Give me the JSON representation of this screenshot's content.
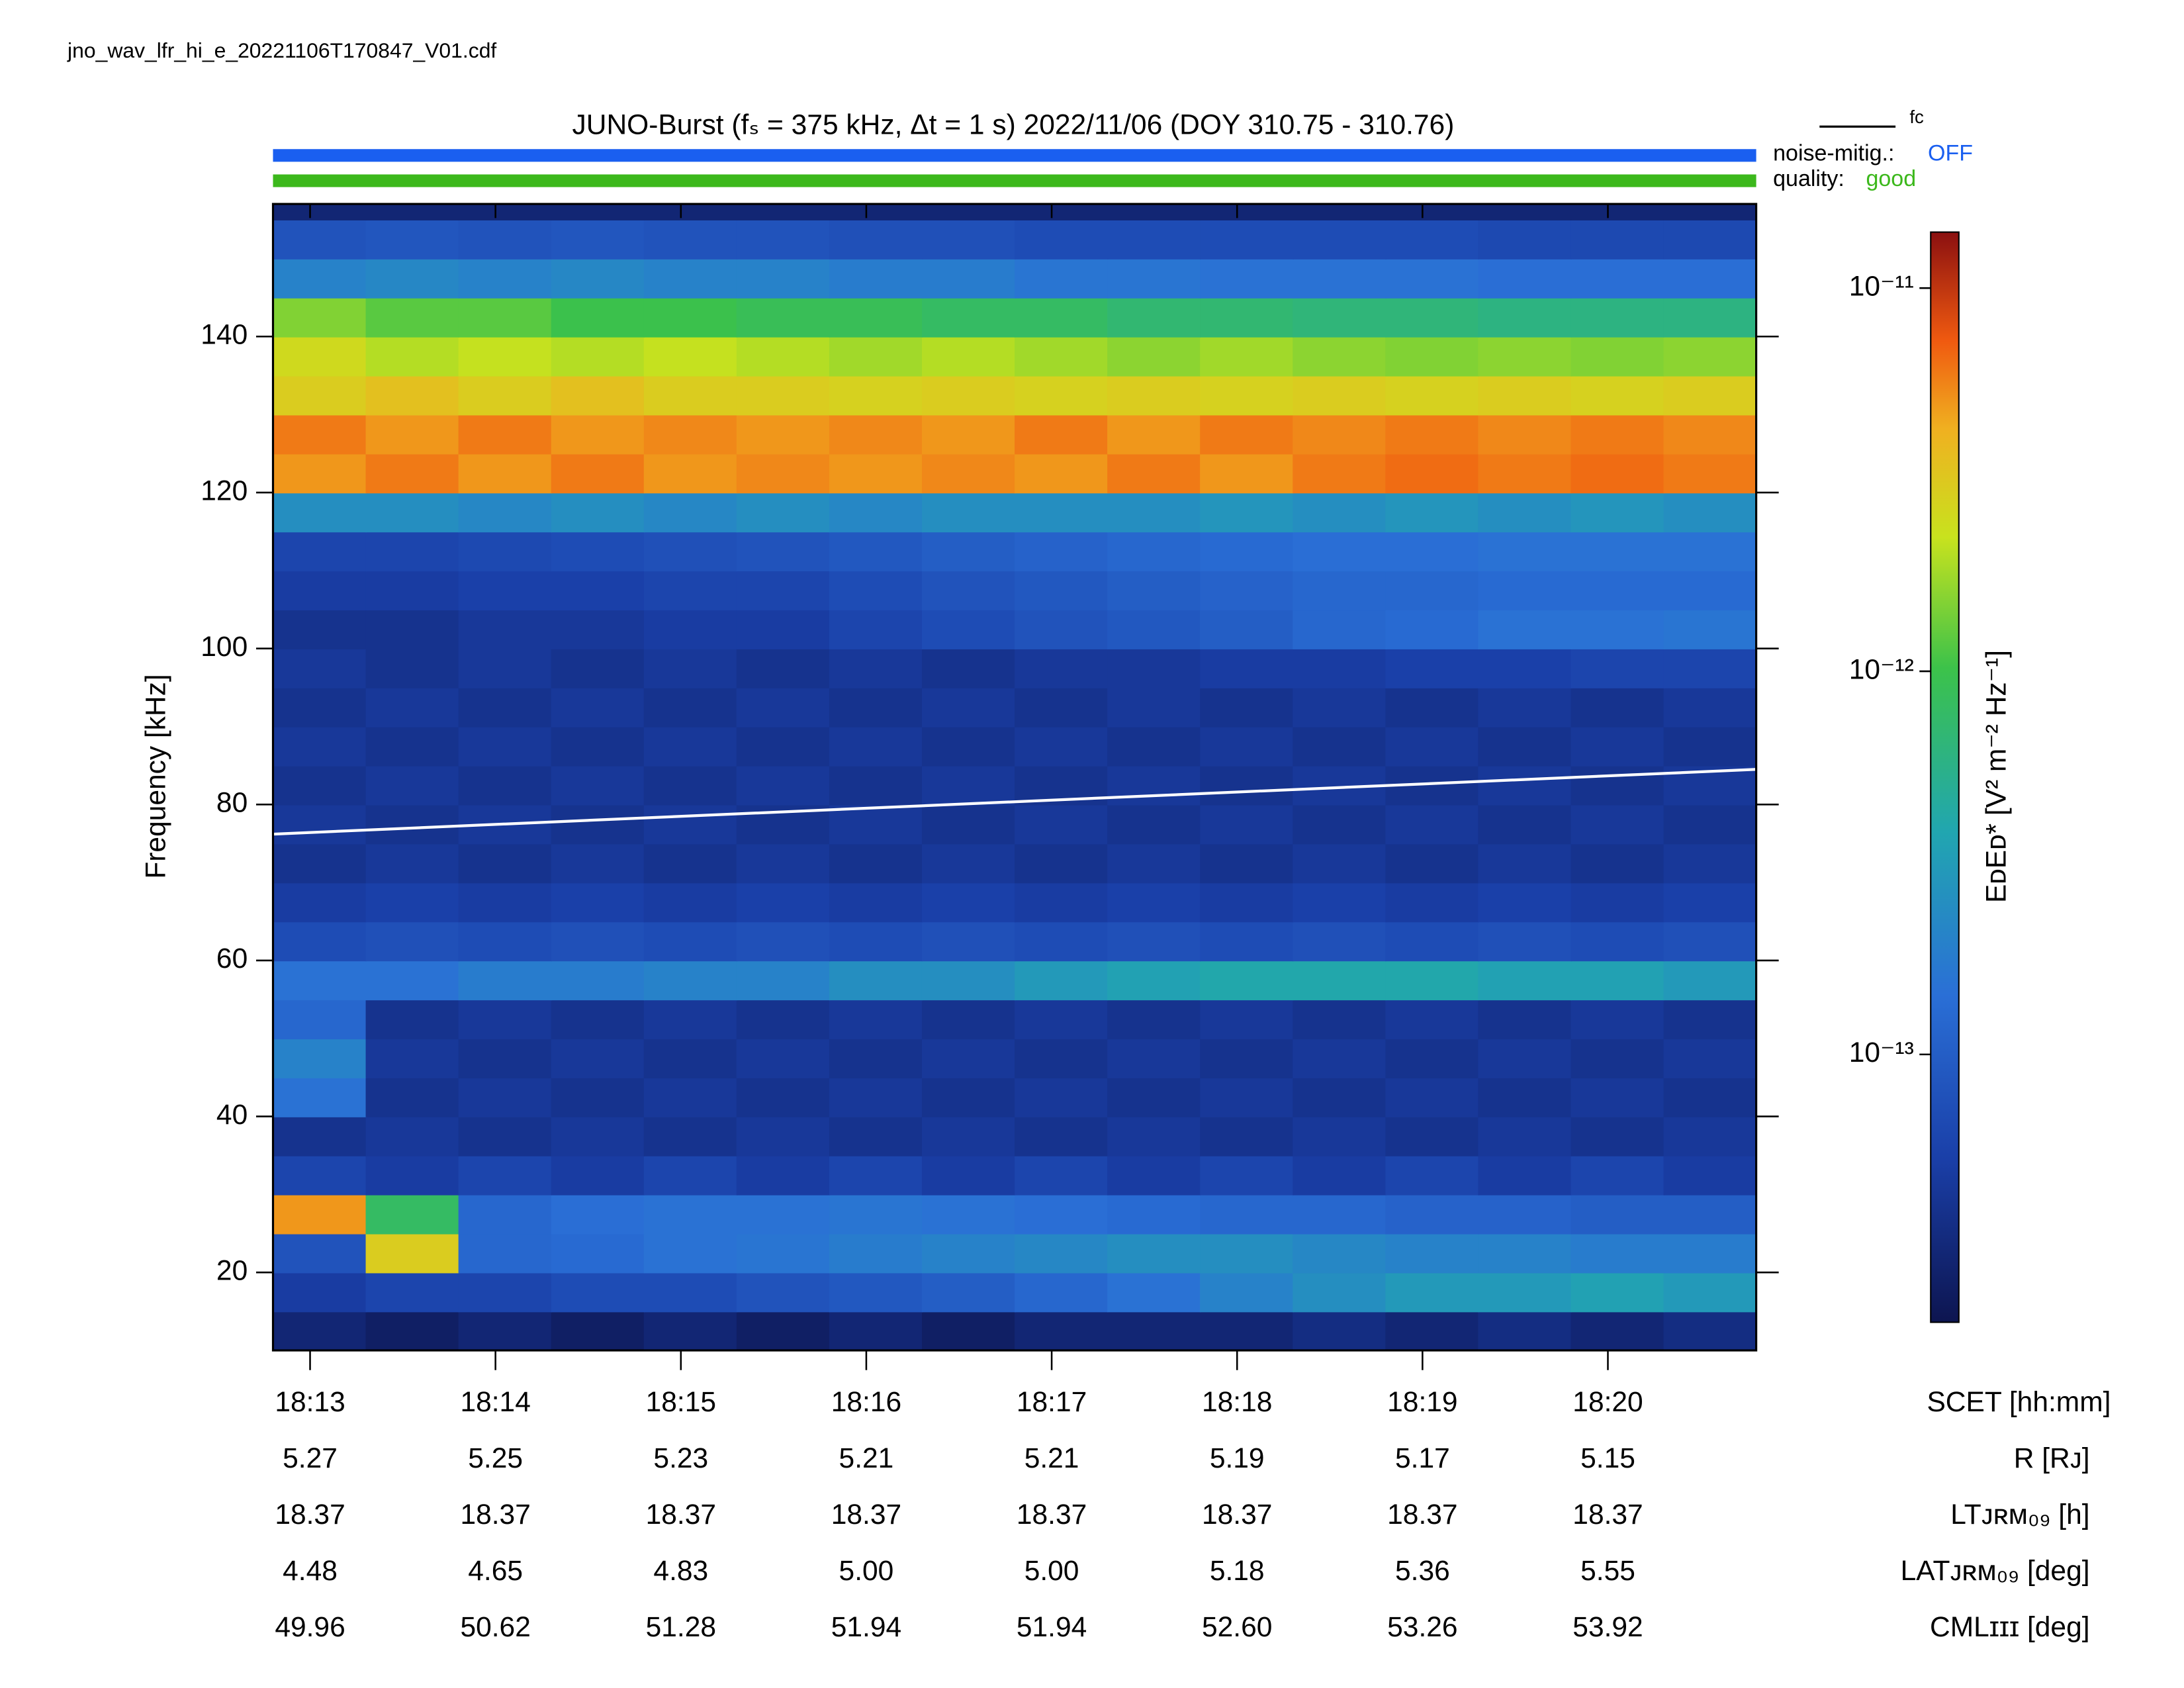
{
  "filename": "jno_wav_lfr_hi_e_20221106T170847_V01.cdf",
  "chart_data": {
    "type": "heatmap",
    "title": "JUNO-Burst (fₛ = 375 kHz, Δt = 1 s)  2022/11/06 (DOY 310.75 - 310.76)",
    "status": [
      {
        "label": "noise-mitig.:",
        "value": "OFF",
        "color": "#1a5ff0"
      },
      {
        "label": "quality:",
        "value": "good",
        "color": "#3cb81c"
      }
    ],
    "y_label": "Frequency [kHz]",
    "z_label": "EᴅEᴅ* [V² m⁻² Hz⁻¹]",
    "xlim": [
      1092.8,
      1100.8
    ],
    "xticks": [
      {
        "value": 1093,
        "label": "18:13"
      },
      {
        "value": 1094,
        "label": "18:14"
      },
      {
        "value": 1095,
        "label": "18:15"
      },
      {
        "value": 1096,
        "label": "18:16"
      },
      {
        "value": 1097,
        "label": "18:17"
      },
      {
        "value": 1098,
        "label": "18:18"
      },
      {
        "value": 1099,
        "label": "18:19"
      },
      {
        "value": 1100,
        "label": "18:20"
      }
    ],
    "ylim": [
      10,
      157
    ],
    "yticks": [
      20,
      40,
      60,
      80,
      100,
      120,
      140
    ],
    "zlim": [
      2e-14,
      1.4e-11
    ],
    "zscale": "log",
    "zticks": [
      {
        "value": 1e-11,
        "label": "10⁻¹¹"
      },
      {
        "value": 1e-12,
        "label": "10⁻¹²"
      },
      {
        "value": 1e-13,
        "label": "10⁻¹³"
      }
    ],
    "x_bins": [
      1092.8,
      1093.3,
      1093.8,
      1094.3,
      1094.8,
      1095.3,
      1095.8,
      1096.3,
      1096.8,
      1097.3,
      1097.8,
      1098.3,
      1098.8,
      1099.3,
      1099.8,
      1100.3,
      1100.8
    ],
    "y_bins": [
      10,
      15,
      20,
      25,
      30,
      35,
      40,
      45,
      50,
      55,
      60,
      65,
      70,
      75,
      80,
      85,
      90,
      95,
      100,
      105,
      110,
      115,
      120,
      125,
      130,
      135,
      140,
      145,
      150,
      155,
      157
    ],
    "z": [
      [
        3e-14,
        2.5e-14,
        3e-14,
        2.5e-14,
        3e-14,
        2.5e-14,
        3e-14,
        2.5e-14,
        3e-14,
        3e-14,
        3e-14,
        3.5e-14,
        3e-14,
        3.5e-14,
        3e-14,
        3.5e-14
      ],
      [
        5e-14,
        6e-14,
        6e-14,
        7e-14,
        7e-14,
        8e-14,
        9e-14,
        1e-13,
        1.2e-13,
        1.5e-13,
        2e-13,
        2.5e-13,
        3e-13,
        3e-13,
        3.5e-13,
        3e-13
      ],
      [
        8e-14,
        3e-12,
        1.2e-13,
        1.3e-13,
        1.5e-13,
        1.6e-13,
        1.8e-13,
        2e-13,
        2.2e-13,
        2.5e-13,
        2.5e-13,
        2.2e-13,
        2e-13,
        2e-13,
        1.8e-13,
        1.8e-13
      ],
      [
        5e-12,
        8e-13,
        1.2e-13,
        1.4e-13,
        1.5e-13,
        1.5e-13,
        1.6e-13,
        1.5e-13,
        1.4e-13,
        1.3e-13,
        1.2e-13,
        1.2e-13,
        1.1e-13,
        1.1e-13,
        1e-13,
        1e-13
      ],
      [
        6e-14,
        5e-14,
        6e-14,
        5e-14,
        6e-14,
        5e-14,
        6e-14,
        5e-14,
        6e-14,
        5e-14,
        6e-14,
        5e-14,
        6e-14,
        5e-14,
        6e-14,
        5e-14
      ],
      [
        4e-14,
        4.5e-14,
        4e-14,
        4.5e-14,
        4e-14,
        4.5e-14,
        4e-14,
        4.5e-14,
        4e-14,
        4.5e-14,
        4e-14,
        4.5e-14,
        4e-14,
        4.5e-14,
        4e-14,
        4.5e-14
      ],
      [
        1.5e-13,
        4e-14,
        4.5e-14,
        4e-14,
        4.5e-14,
        4e-14,
        4.5e-14,
        4e-14,
        4.5e-14,
        4e-14,
        4.5e-14,
        4e-14,
        4.5e-14,
        4e-14,
        4.5e-14,
        4e-14
      ],
      [
        2e-13,
        4.5e-14,
        4e-14,
        4.5e-14,
        4e-14,
        4.5e-14,
        4e-14,
        4.5e-14,
        4e-14,
        4.5e-14,
        4e-14,
        4.5e-14,
        4e-14,
        4.5e-14,
        4e-14,
        4.5e-14
      ],
      [
        1.2e-13,
        4e-14,
        4.5e-14,
        4e-14,
        4.5e-14,
        4e-14,
        4.5e-14,
        4e-14,
        4.5e-14,
        4e-14,
        4.5e-14,
        4e-14,
        4.5e-14,
        4e-14,
        4.5e-14,
        4e-14
      ],
      [
        1.5e-13,
        1.5e-13,
        1.8e-13,
        1.8e-13,
        2e-13,
        2e-13,
        2.5e-13,
        2.5e-13,
        3e-13,
        3.5e-13,
        4e-13,
        4e-13,
        4e-13,
        3.5e-13,
        3.5e-13,
        3e-13
      ],
      [
        7e-14,
        7.5e-14,
        7e-14,
        7.5e-14,
        7e-14,
        7.5e-14,
        7e-14,
        7.5e-14,
        7e-14,
        7.5e-14,
        7e-14,
        7.5e-14,
        7e-14,
        7.5e-14,
        7e-14,
        7.5e-14
      ],
      [
        5e-14,
        5.5e-14,
        5e-14,
        5.5e-14,
        5e-14,
        5.5e-14,
        5e-14,
        5.5e-14,
        5e-14,
        5.5e-14,
        5e-14,
        5.5e-14,
        5e-14,
        5.5e-14,
        5e-14,
        5.5e-14
      ],
      [
        4e-14,
        4.5e-14,
        4e-14,
        4.5e-14,
        4e-14,
        4.5e-14,
        4e-14,
        4.5e-14,
        4e-14,
        4.5e-14,
        4e-14,
        4.5e-14,
        4e-14,
        4.5e-14,
        4e-14,
        4.5e-14
      ],
      [
        4.5e-14,
        4e-14,
        4.5e-14,
        4e-14,
        4.5e-14,
        4e-14,
        4.5e-14,
        4e-14,
        4.5e-14,
        4e-14,
        4.5e-14,
        4e-14,
        4.5e-14,
        4e-14,
        4.5e-14,
        4e-14
      ],
      [
        4e-14,
        4.5e-14,
        4e-14,
        4.5e-14,
        4e-14,
        4.5e-14,
        4e-14,
        4.5e-14,
        4e-14,
        4.5e-14,
        4e-14,
        4.5e-14,
        4e-14,
        4.5e-14,
        4e-14,
        4.5e-14
      ],
      [
        4.5e-14,
        4e-14,
        4.5e-14,
        4e-14,
        4.5e-14,
        4e-14,
        4.5e-14,
        4e-14,
        4.5e-14,
        4e-14,
        4.5e-14,
        4e-14,
        4.5e-14,
        4e-14,
        4.5e-14,
        4e-14
      ],
      [
        4e-14,
        4.5e-14,
        4e-14,
        4.5e-14,
        4e-14,
        4.5e-14,
        4e-14,
        4.5e-14,
        4e-14,
        4.5e-14,
        4e-14,
        4.5e-14,
        4e-14,
        4.5e-14,
        4e-14,
        4.5e-14
      ],
      [
        4.5e-14,
        4e-14,
        4.5e-14,
        4e-14,
        4.5e-14,
        4e-14,
        4.5e-14,
        4e-14,
        4.5e-14,
        4.5e-14,
        5e-14,
        5e-14,
        5.5e-14,
        5.5e-14,
        6e-14,
        6e-14
      ],
      [
        4e-14,
        4e-14,
        4.5e-14,
        4.5e-14,
        5e-14,
        5e-14,
        6e-14,
        7e-14,
        8e-14,
        9e-14,
        1e-13,
        1.2e-13,
        1.3e-13,
        1.5e-13,
        1.5e-13,
        1.6e-13
      ],
      [
        5e-14,
        5e-14,
        5.5e-14,
        5.5e-14,
        6e-14,
        6e-14,
        7e-14,
        8e-14,
        9e-14,
        1e-13,
        1.1e-13,
        1.2e-13,
        1.2e-13,
        1.3e-13,
        1.3e-13,
        1.3e-13
      ],
      [
        6e-14,
        6e-14,
        6.5e-14,
        7e-14,
        7.5e-14,
        8e-14,
        9e-14,
        1e-13,
        1.1e-13,
        1.2e-13,
        1.3e-13,
        1.4e-13,
        1.4e-13,
        1.5e-13,
        1.5e-13,
        1.5e-13
      ],
      [
        2.5e-13,
        2.5e-13,
        2.2e-13,
        2.5e-13,
        2.2e-13,
        2.5e-13,
        2.2e-13,
        2.5e-13,
        2.5e-13,
        2.5e-13,
        2.8e-13,
        2.5e-13,
        2.8e-13,
        2.5e-13,
        2.8e-13,
        2.5e-13
      ],
      [
        5e-12,
        6e-12,
        5e-12,
        6e-12,
        5e-12,
        5.5e-12,
        5e-12,
        5.5e-12,
        5e-12,
        6e-12,
        5e-12,
        6e-12,
        6.5e-12,
        6e-12,
        6.5e-12,
        6e-12
      ],
      [
        6e-12,
        5e-12,
        6e-12,
        5e-12,
        5.5e-12,
        5e-12,
        5.5e-12,
        5e-12,
        6e-12,
        5e-12,
        6e-12,
        5.5e-12,
        6e-12,
        5.5e-12,
        6e-12,
        5.5e-12
      ],
      [
        3e-12,
        3.5e-12,
        3e-12,
        3.5e-12,
        3e-12,
        3e-12,
        2.8e-12,
        3e-12,
        2.8e-12,
        3e-12,
        2.8e-12,
        3e-12,
        2.8e-12,
        3e-12,
        2.8e-12,
        3e-12
      ],
      [
        2.5e-12,
        2e-12,
        2.2e-12,
        2e-12,
        2.2e-12,
        2e-12,
        1.8e-12,
        2e-12,
        1.8e-12,
        1.6e-12,
        1.8e-12,
        1.6e-12,
        1.5e-12,
        1.6e-12,
        1.5e-12,
        1.6e-12
      ],
      [
        1.5e-12,
        1.2e-12,
        1.2e-12,
        1e-12,
        1e-12,
        9e-13,
        9e-13,
        8e-13,
        8e-13,
        7e-13,
        7e-13,
        6.5e-13,
        6.5e-13,
        6e-13,
        6e-13,
        6e-13
      ],
      [
        2e-13,
        2.2e-13,
        2e-13,
        2.2e-13,
        2e-13,
        2e-13,
        1.8e-13,
        1.8e-13,
        1.6e-13,
        1.6e-13,
        1.5e-13,
        1.5e-13,
        1.5e-13,
        1.4e-13,
        1.4e-13,
        1.4e-13
      ],
      [
        8e-14,
        8.5e-14,
        8e-14,
        8.5e-14,
        8e-14,
        8e-14,
        7.5e-14,
        7.5e-14,
        7e-14,
        7e-14,
        7e-14,
        7e-14,
        7e-14,
        6.5e-14,
        6.5e-14,
        6.5e-14
      ],
      [
        3e-14,
        3e-14,
        3e-14,
        3e-14,
        3e-14,
        3e-14,
        3e-14,
        3e-14,
        3e-14,
        3e-14,
        3e-14,
        3e-14,
        3e-14,
        3e-14,
        3e-14,
        3e-14
      ]
    ],
    "lines": [
      {
        "name": "fc",
        "color": "#ffffff",
        "x": [
          1092.8,
          1100.8
        ],
        "values": [
          76.2,
          84.5
        ]
      }
    ]
  },
  "ephemeris": {
    "header": "SCET [hh:mm]",
    "rows": [
      {
        "label": "R [Rᴊ]",
        "values": [
          "5.27",
          "5.25",
          "5.23",
          "5.21",
          "5.21",
          "5.19",
          "5.17",
          "5.15"
        ]
      },
      {
        "label": "LTᴊʀᴍ₀₉ [h]",
        "values": [
          "18.37",
          "18.37",
          "18.37",
          "18.37",
          "18.37",
          "18.37",
          "18.37",
          "18.37"
        ]
      },
      {
        "label": "LATᴊʀᴍ₀₉ [deg]",
        "values": [
          "4.48",
          "4.65",
          "4.83",
          "5.00",
          "5.00",
          "5.18",
          "5.36",
          "5.55"
        ]
      },
      {
        "label": "CMLɪɪɪ [deg]",
        "values": [
          "49.96",
          "50.62",
          "51.28",
          "51.94",
          "51.94",
          "52.60",
          "53.26",
          "53.92"
        ]
      }
    ]
  }
}
